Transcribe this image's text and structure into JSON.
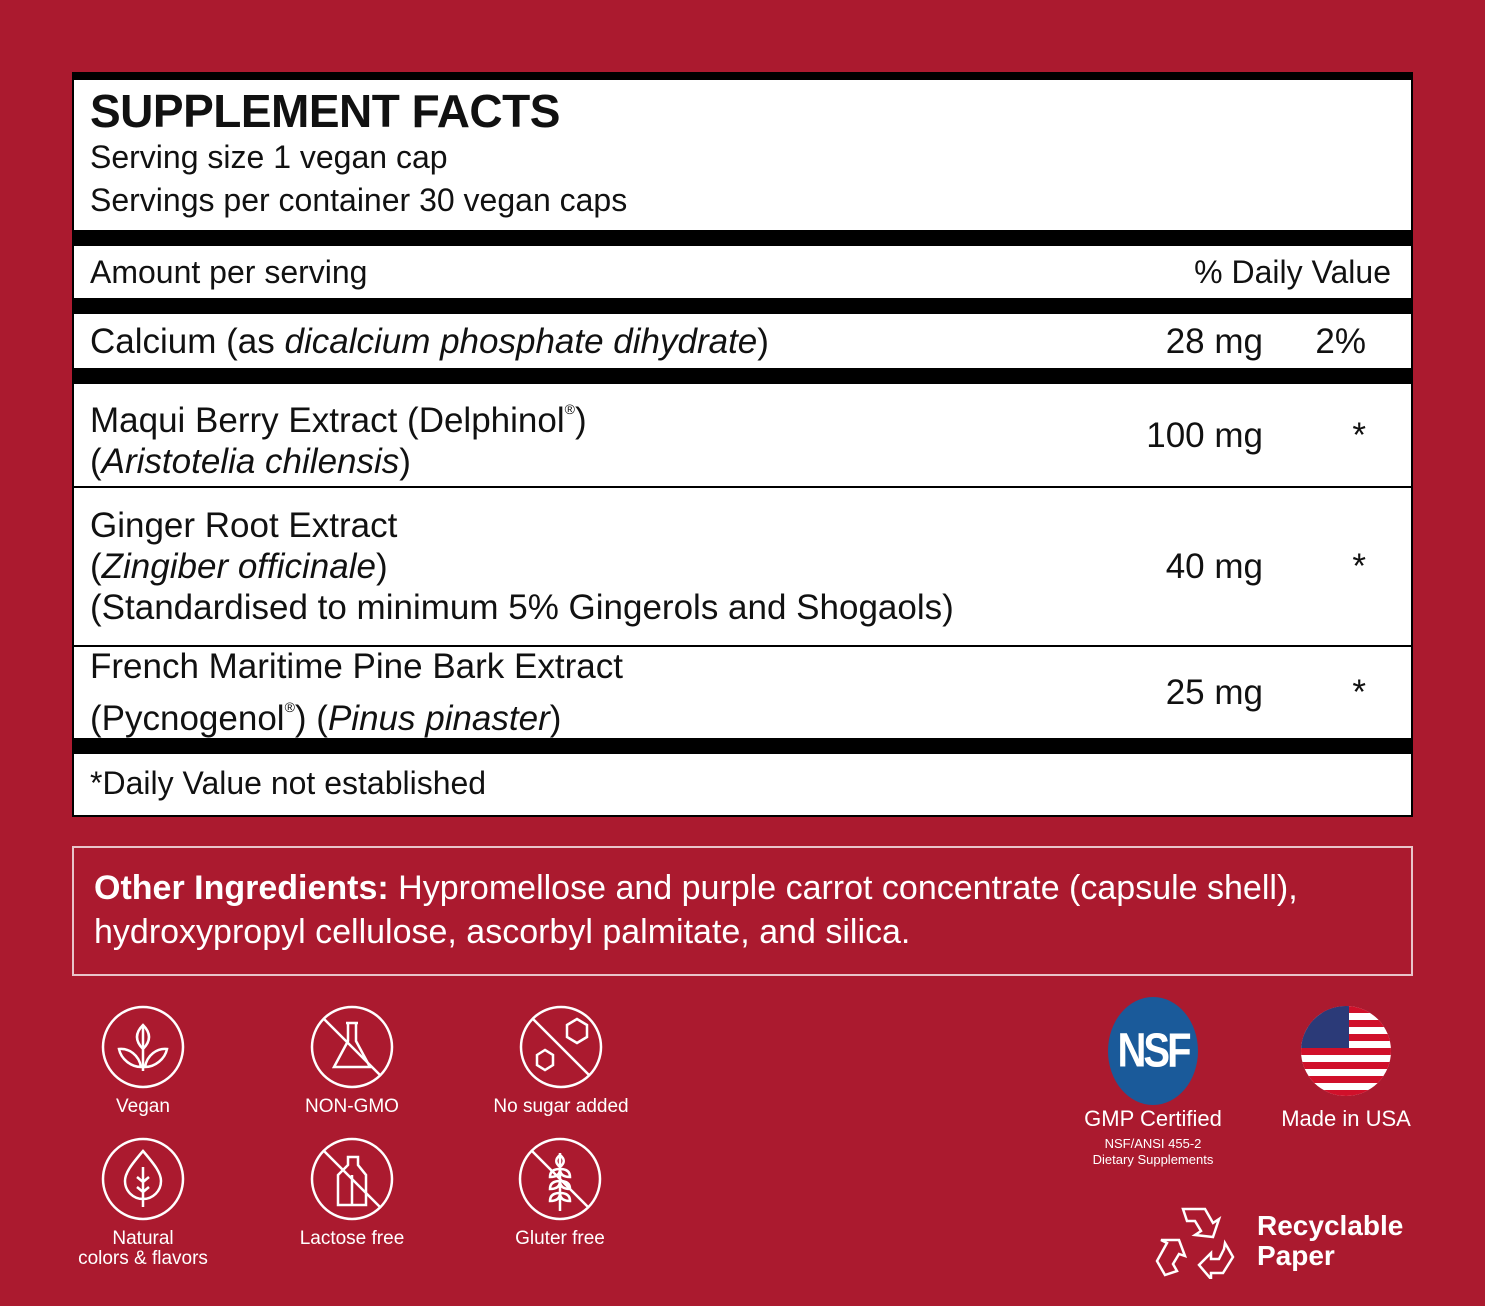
{
  "facts": {
    "title": "SUPPLEMENT FACTS",
    "serving_size": "Serving size 1 vegan cap",
    "servings_per_container": "Servings per container 30 vegan caps",
    "amount_header": "Amount per serving",
    "dv_header": "% Daily Value",
    "rows": [
      {
        "name": "Calcium (as ",
        "name_italic": "dicalcium phosphate dihydrate",
        "name_end": ")",
        "amount": "28 mg",
        "dv": "2%"
      },
      {
        "name": "Maqui Berry Extract (Delphinol",
        "reg": "®",
        "name_end": ")",
        "line2_open": "(",
        "line2_italic": "Aristotelia  chilensis",
        "line2_close": ")",
        "amount": "100 mg",
        "dv": "*"
      },
      {
        "name": "Ginger Root Extract",
        "line2_open": "(",
        "line2_italic": "Zingiber officinale",
        "line2_close": ")",
        "line3": "(Standardised to minimum 5% Gingerols and Shogaols)",
        "amount": "40 mg",
        "dv": "*"
      },
      {
        "name": "French Maritime Pine Bark Extract",
        "line2_open": "(Pycnogenol",
        "reg": "®",
        "line2_mid": ") (",
        "line2_italic": "Pinus pinaster",
        "line2_close": ")",
        "amount": "25 mg",
        "dv": "*"
      }
    ],
    "footnote": "*Daily Value not established"
  },
  "other_ingredients": {
    "label": "Other Ingredients:",
    "text": " Hypromellose and purple carrot concentrate (capsule shell), hydroxypropyl cellulose, ascorbyl palmitate, and silica."
  },
  "badges": {
    "vegan": "Vegan",
    "non_gmo": "NON-GMO",
    "no_sugar": "No sugar added",
    "natural_1": "Natural",
    "natural_2": "colors & flavors",
    "lactose": "Lactose free",
    "gluten": "Gluter free",
    "nsf_logo": "NSF",
    "gmp": "GMP Certified",
    "gmp_sub1": "NSF/ANSI 455-2",
    "gmp_sub2": "Dietary Supplements",
    "usa": "Made in USA",
    "recycle_1": "Recyclable",
    "recycle_2": "Paper"
  },
  "colors": {
    "background": "#ab1a2f",
    "nsf_blue": "#1a5a9a"
  }
}
